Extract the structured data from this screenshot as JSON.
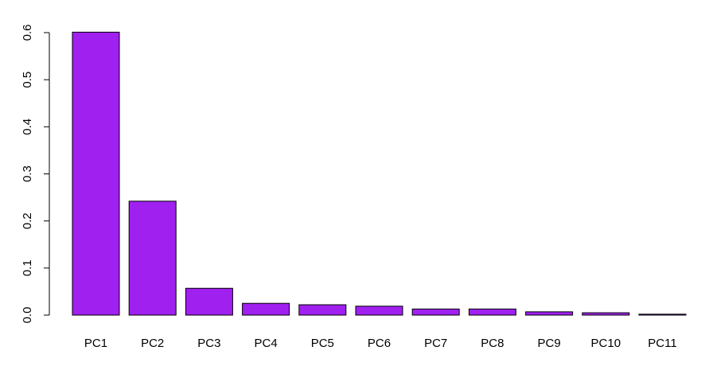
{
  "chart_data": {
    "type": "bar",
    "categories": [
      "PC1",
      "PC2",
      "PC3",
      "PC4",
      "PC5",
      "PC6",
      "PC7",
      "PC8",
      "PC9",
      "PC10",
      "PC11"
    ],
    "values": [
      0.601,
      0.242,
      0.057,
      0.025,
      0.022,
      0.019,
      0.013,
      0.013,
      0.007,
      0.005,
      0.002
    ],
    "color": "#a020f0",
    "ylim": [
      0,
      0.6
    ],
    "yticks": [
      {
        "value": 0,
        "label": "0.0"
      },
      0.1,
      0.2,
      0.3,
      0.4,
      0.5,
      0.6
    ]
  }
}
